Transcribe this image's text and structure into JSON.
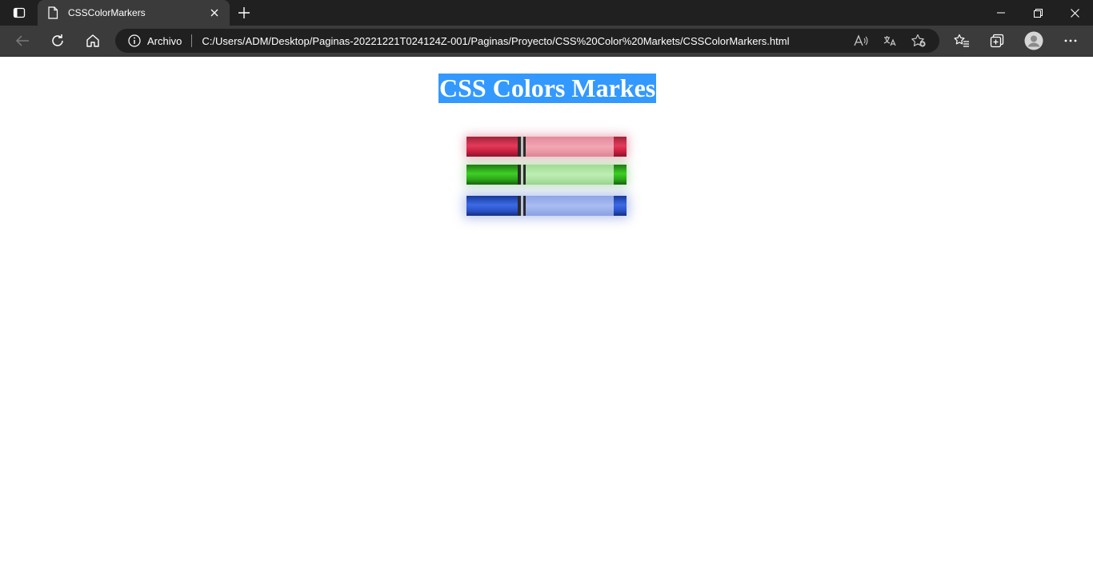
{
  "browser": {
    "tab": {
      "title": "CSSColorMarkers",
      "icon": "document-icon"
    },
    "addressbar": {
      "security_label": "Archivo",
      "url": "C:/Users/ADM/Desktop/Paginas-20221221T024124Z-001/Paginas/Proyecto/CSS%20Color%20Markets/CSSColorMarkers.html"
    },
    "icons": {
      "tab_actions": "tab-actions-icon",
      "close_tab": "close-icon",
      "new_tab": "plus-icon",
      "minimize": "minimize-icon",
      "restore": "restore-icon",
      "close_window": "close-icon",
      "back": "back-arrow-icon",
      "refresh": "refresh-icon",
      "home": "home-icon",
      "info": "info-icon",
      "read_aloud": "read-aloud-icon",
      "translate": "translate-icon",
      "add_favorite": "add-favorite-icon",
      "favorites": "favorites-icon",
      "collections": "collections-icon",
      "profile": "profile-icon",
      "more": "more-icon"
    }
  },
  "page": {
    "heading": "CSS Colors Markes",
    "heading_bg": "#3399ff",
    "markers": [
      {
        "color": "red",
        "hex": "#e33a5a"
      },
      {
        "color": "green",
        "hex": "#3fcf26"
      },
      {
        "color": "blue",
        "hex": "#3c6ae6"
      }
    ]
  }
}
